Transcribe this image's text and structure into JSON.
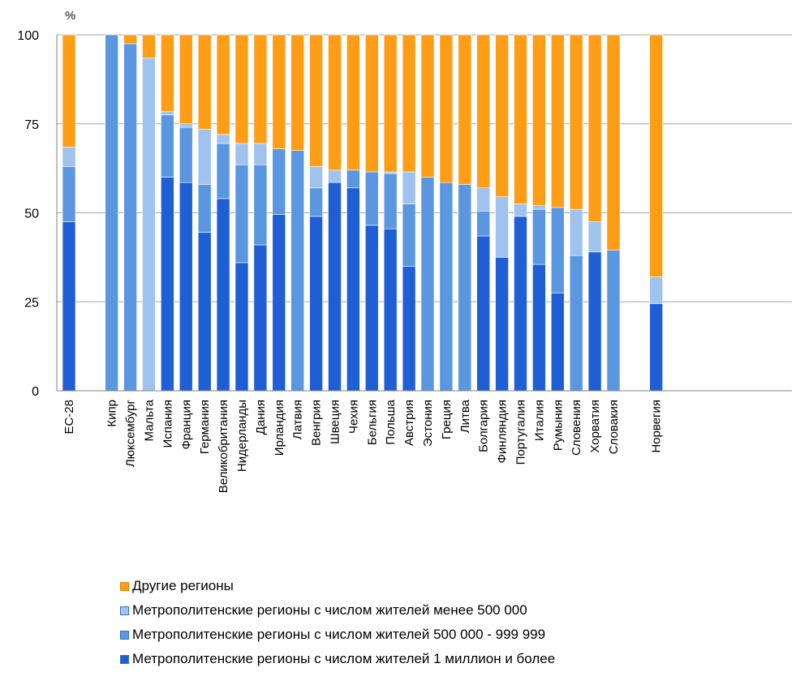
{
  "chart_data": {
    "type": "bar",
    "stacked": true,
    "unit": "%",
    "ylim": [
      0,
      100
    ],
    "yticks": [
      0,
      25,
      50,
      75,
      100
    ],
    "grid": true,
    "legend_position": "bottom",
    "categories": [
      "ЕС-28",
      "Кипр",
      "Люксембург",
      "Мальта",
      "Испания",
      "Франция",
      "Германия",
      "Великобритания",
      "Нидерланды",
      "Дания",
      "Ирландия",
      "Латвия",
      "Венгрия",
      "Швеция",
      "Чехия",
      "Бельгия",
      "Польша",
      "Австрия",
      "Эстония",
      "Греция",
      "Литва",
      "Болгария",
      "Финляндия",
      "Португалия",
      "Италия",
      "Румыния",
      "Словения",
      "Хорватия",
      "Словакия",
      "Норвегия"
    ],
    "series": [
      {
        "name": "Метрополитенские регионы с числом жителей 1 миллион и более",
        "color": "#1f5fd6",
        "values": [
          47.5,
          0,
          0,
          0,
          60,
          58.5,
          44.5,
          54,
          36,
          41,
          49.5,
          0,
          49,
          58.5,
          57,
          46.5,
          45.5,
          35,
          0,
          0,
          0,
          43.5,
          37.5,
          49,
          35.5,
          27.5,
          0,
          39,
          0,
          24.5
        ]
      },
      {
        "name": "Метрополитенские регионы с числом жителей 500 000 - 999 999",
        "color": "#5b97e0",
        "values": [
          15.5,
          100,
          97.5,
          0,
          17.5,
          15.5,
          13.5,
          15.5,
          27.5,
          22.5,
          18.5,
          67.5,
          8,
          0,
          5,
          15,
          15.5,
          17.5,
          60,
          58.5,
          58,
          7,
          0,
          0,
          15.5,
          24,
          38,
          0,
          39.5,
          0
        ]
      },
      {
        "name": "Метрополитенские регионы с числом жителей менее 500 000",
        "color": "#9fc2ee",
        "values": [
          5.5,
          0,
          0,
          93.5,
          1,
          1,
          15.5,
          2.5,
          6,
          6,
          0,
          0,
          6,
          3.5,
          0,
          0,
          0.5,
          9,
          0,
          0,
          0,
          6.5,
          17,
          3.5,
          1,
          0,
          13,
          8.5,
          0,
          7.5
        ]
      },
      {
        "name": "Другие регионы",
        "color": "#ff9d17",
        "values": [
          31.5,
          0,
          2.5,
          6.5,
          21.5,
          25,
          26.5,
          28,
          30.5,
          30.5,
          32,
          32.5,
          37,
          38,
          38,
          38.5,
          38.5,
          38.5,
          40,
          41.5,
          42,
          43,
          45.5,
          47.5,
          48,
          48.5,
          49,
          52.5,
          60.5,
          68
        ]
      }
    ],
    "legend_order": [
      3,
      2,
      1,
      0
    ]
  }
}
